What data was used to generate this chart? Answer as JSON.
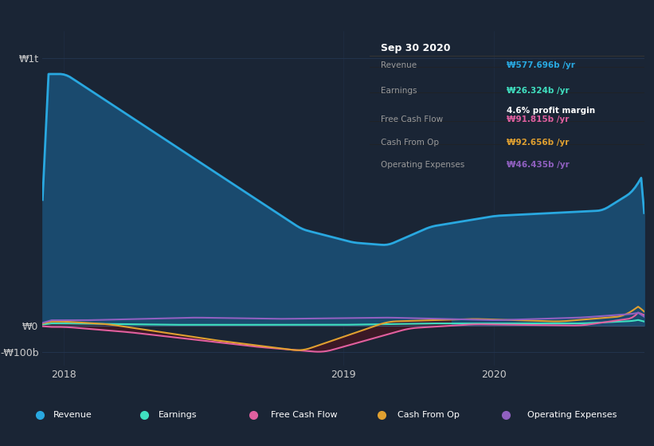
{
  "bg_color": "#1a2535",
  "plot_bg_color": "#1a2535",
  "chart_area_color": "#162030",
  "grid_color": "#243550",
  "revenue_color": "#29a8e0",
  "revenue_fill_color": "#1a4a6e",
  "earnings_color": "#40e0c0",
  "fcf_color": "#e060a0",
  "cashfromop_color": "#e0a030",
  "opex_color": "#9060c0",
  "tooltip_bg": "#000000",
  "tooltip_title": "Sep 30 2020",
  "legend": [
    {
      "label": "Revenue",
      "color": "#29a8e0"
    },
    {
      "label": "Earnings",
      "color": "#40e0c0"
    },
    {
      "label": "Free Cash Flow",
      "color": "#e060a0"
    },
    {
      "label": "Cash From Op",
      "color": "#e0a030"
    },
    {
      "label": "Operating Expenses",
      "color": "#9060c0"
    }
  ],
  "ylim": [
    -150,
    1100
  ],
  "xlim": [
    0,
    140
  ]
}
